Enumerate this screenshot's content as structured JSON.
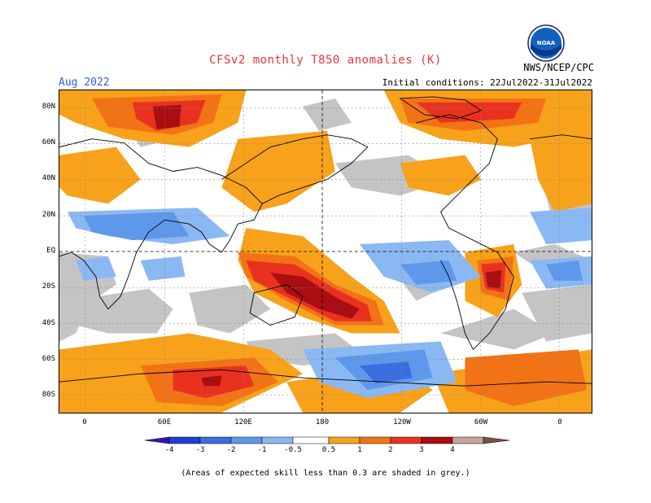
{
  "header": {
    "title": "CFSv2 monthly T850 anomalies (K)",
    "month": "Aug 2022",
    "agency": "NWS/NCEP/CPC",
    "initial_conditions": "Initial conditions: 22Jul2022-31Jul2022",
    "logo_text": "NOAA"
  },
  "axes": {
    "lat_labels": [
      "80N",
      "60N",
      "40N",
      "20N",
      "EQ",
      "20S",
      "40S",
      "60S",
      "80S"
    ],
    "lon_labels": [
      "0",
      "60E",
      "120E",
      "180",
      "120W",
      "60W",
      "0"
    ]
  },
  "colorbar": {
    "labels": [
      "-4",
      "-3",
      "-2",
      "-1",
      "-0.5",
      "0.5",
      "1",
      "2",
      "3",
      "4"
    ],
    "colors": [
      "#3a10b8",
      "#1f3fd0",
      "#3a6ee0",
      "#5e98ea",
      "#8ab8f2",
      "#ffffff",
      "#f7a21a",
      "#f27316",
      "#e8321f",
      "#a80e12",
      "#c9a49a",
      "#7a5040"
    ]
  },
  "footnote": "(Areas of expected skill less than 0.3 are shaded in grey.)"
}
